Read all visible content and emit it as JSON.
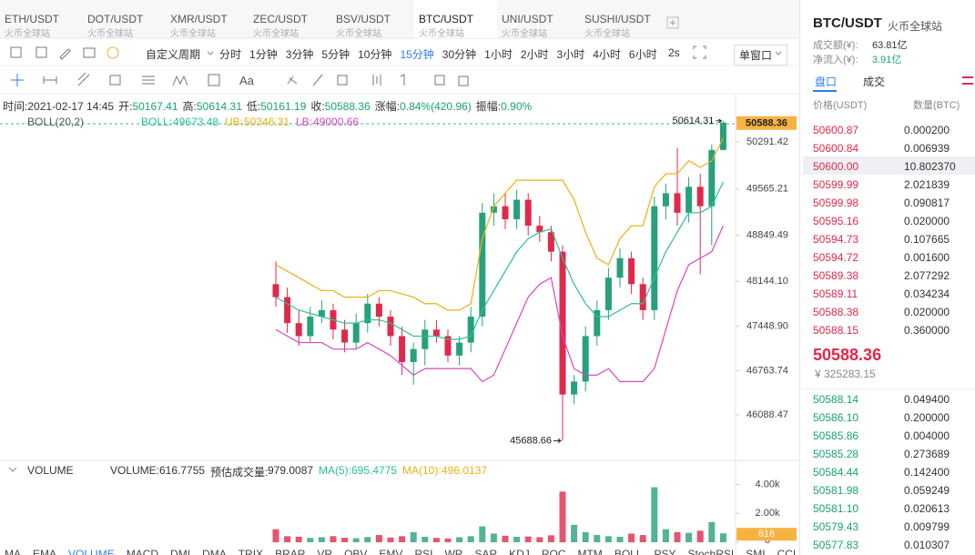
{
  "tabs": [
    {
      "pair": "ETH/USDT",
      "exchange": "火币全球站"
    },
    {
      "pair": "DOT/USDT",
      "exchange": "火币全球站"
    },
    {
      "pair": "XMR/USDT",
      "exchange": "火币全球站"
    },
    {
      "pair": "ZEC/USDT",
      "exchange": "火币全球站"
    },
    {
      "pair": "BSV/USDT",
      "exchange": "火币全球站"
    },
    {
      "pair": "BTC/USDT",
      "exchange": "火币全球站"
    },
    {
      "pair": "UNI/USDT",
      "exchange": "火币全球站"
    },
    {
      "pair": "SUSHI/USDT",
      "exchange": "火币全球站"
    }
  ],
  "active_tab": 5,
  "periods": {
    "custom": "自定义周期",
    "items": [
      "分时",
      "1分钟",
      "3分钟",
      "5分钟",
      "10分钟",
      "15分钟",
      "30分钟",
      "1小时",
      "2小时",
      "3小时",
      "4小时",
      "6小时"
    ],
    "active": 5,
    "refresh": "2s",
    "window": "单窗口"
  },
  "font_tool": "Aa",
  "info": [
    [
      "时间:",
      "2021-02-17 14:45"
    ],
    [
      "开:",
      "50167.41"
    ],
    [
      "高:",
      "50614.31"
    ],
    [
      "低:",
      "50161.19"
    ],
    [
      "收:",
      "50588.36"
    ],
    [
      "涨幅:",
      "0.84%(420.96)"
    ],
    [
      "振幅:",
      "0.90%"
    ]
  ],
  "chart_data": [
    {
      "type": "candlestick",
      "indicator": "BOLL(20,2)",
      "up_color": "#26a17b",
      "down_color": "#e0294a",
      "ylim": [
        45400,
        50725
      ],
      "yticks": [
        50291.42,
        49565.21,
        48849.49,
        {
          "value": 48144.1,
          "label": "48144.10"
        },
        {
          "value": 47448.9,
          "label": "47448.90"
        },
        46763.74,
        46088.47
      ],
      "open": [
        48100,
        47900,
        47500,
        47300,
        47600,
        47700,
        47400,
        47200,
        47500,
        47800,
        47600,
        47300,
        46900,
        47100,
        47400,
        47300,
        47000,
        47200,
        47600,
        49200,
        49300,
        49100,
        49400,
        49000,
        48900,
        48600,
        46400,
        46600,
        47300,
        47700,
        48200,
        48500,
        48100,
        47700,
        49300,
        49500,
        49200,
        49600,
        49300,
        50167.41
      ],
      "high": [
        48450,
        48050,
        47700,
        47750,
        47850,
        47800,
        47550,
        47650,
        47950,
        47900,
        47700,
        47450,
        47200,
        47550,
        47550,
        47400,
        47300,
        47750,
        49350,
        49500,
        49500,
        49550,
        49500,
        49150,
        49000,
        48700,
        46700,
        47450,
        47850,
        48350,
        48650,
        48600,
        48200,
        49450,
        49650,
        50200,
        49750,
        49800,
        50250,
        50614.31
      ],
      "low": [
        47750,
        47350,
        47150,
        47200,
        47500,
        47250,
        47050,
        47100,
        47350,
        47450,
        47150,
        46700,
        46550,
        46850,
        47200,
        46900,
        46850,
        47050,
        47450,
        49000,
        48950,
        48950,
        48850,
        48750,
        48450,
        45688.66,
        46250,
        46450,
        47150,
        47550,
        48050,
        47950,
        47550,
        47550,
        49100,
        49000,
        49050,
        48250,
        48700,
        50161.19
      ],
      "close": [
        47900,
        47500,
        47300,
        47600,
        47700,
        47400,
        47200,
        47500,
        47800,
        47600,
        47300,
        46900,
        47100,
        47400,
        47300,
        47000,
        47200,
        47600,
        49200,
        49300,
        49100,
        49400,
        49000,
        48900,
        48600,
        46400,
        46600,
        47300,
        47700,
        48200,
        48500,
        48100,
        47700,
        49300,
        49500,
        49200,
        49600,
        49300,
        50167.41,
        50588.36
      ],
      "series": [
        {
          "label": "BOLL:",
          "color": "#2bbf9b",
          "values": [
            47900,
            47800,
            47700,
            47650,
            47600,
            47550,
            47500,
            47500,
            47550,
            47550,
            47500,
            47400,
            47300,
            47300,
            47300,
            47250,
            47250,
            47300,
            47700,
            48000,
            48300,
            48600,
            48800,
            48900,
            48950,
            48500,
            48100,
            47800,
            47600,
            47600,
            47700,
            47800,
            47800,
            48200,
            48600,
            48900,
            49200,
            49200,
            49300,
            49673.48
          ]
        },
        {
          "label": "UB:",
          "color": "#eeb012",
          "values": [
            48400,
            48300,
            48200,
            48100,
            48000,
            48000,
            47900,
            47900,
            47900,
            48000,
            48000,
            47950,
            47900,
            47800,
            47800,
            47700,
            47700,
            47800,
            48800,
            49300,
            49500,
            49700,
            49700,
            49700,
            49700,
            49700,
            49400,
            48900,
            48500,
            48400,
            48800,
            49000,
            49000,
            49600,
            49800,
            49800,
            50000,
            49900,
            50000,
            50346.31
          ]
        },
        {
          "label": "LB:",
          "color": "#d946c0",
          "values": [
            47400,
            47300,
            47200,
            47200,
            47200,
            47100,
            47100,
            47100,
            47200,
            47100,
            47000,
            46850,
            46700,
            46800,
            46800,
            46800,
            46800,
            46800,
            46600,
            46700,
            47100,
            47500,
            47900,
            48100,
            48200,
            47300,
            46800,
            46700,
            46700,
            46800,
            46600,
            46600,
            46600,
            46800,
            47400,
            48000,
            48400,
            48500,
            48600,
            49000.66
          ]
        }
      ]
    },
    {
      "type": "bar",
      "title": "VOLUME",
      "ylim": [
        0,
        4400
      ],
      "yticks": [
        {
          "value": 4000,
          "label": "4.00k"
        },
        {
          "value": 2000,
          "label": "2.00k"
        },
        0
      ],
      "legend": [
        [
          "VOLUME:",
          "616.7755"
        ],
        [
          "预估成交量:",
          "979.0087"
        ],
        [
          "MA(5):",
          "695.4775"
        ],
        [
          "MA(10):",
          "496.0137"
        ]
      ],
      "current_label": "616",
      "values": [
        900,
        420,
        380,
        300,
        350,
        420,
        310,
        280,
        360,
        500,
        330,
        420,
        700,
        380,
        300,
        260,
        350,
        420,
        1100,
        600,
        450,
        380,
        400,
        350,
        480,
        3500,
        1200,
        700,
        500,
        420,
        380,
        600,
        500,
        3800,
        900,
        700,
        650,
        800,
        1400,
        616.7755
      ]
    }
  ],
  "indicators": [
    "MA",
    "EMA",
    "VOLUME",
    "MACD",
    "DMI",
    "DMA",
    "TRIX",
    "BRAR",
    "VR",
    "OBV",
    "EMV",
    "RSI",
    "WR",
    "SAR",
    "KDJ",
    "ROC",
    "MTM",
    "BOLL",
    "PSY",
    "StochRSI",
    "SMI",
    "CCI"
  ],
  "active_indicator": 2,
  "market": {
    "pair": "BTC/USDT",
    "exchange": "火币全球站",
    "turnover": [
      "成交额(¥):",
      "63.81亿"
    ],
    "inflow": [
      "净流入(¥):",
      "3.91亿"
    ],
    "tabs": [
      "盘口",
      "成交"
    ],
    "columns": [
      "价格(USDT)",
      "数量(BTC)"
    ],
    "asks": [
      [
        "50600.87",
        "0.000200"
      ],
      [
        "50600.84",
        "0.006939"
      ],
      [
        "50600.00",
        "10.802370"
      ],
      [
        "50599.99",
        "2.021839"
      ],
      [
        "50599.98",
        "0.090817"
      ],
      [
        "50595.16",
        "0.020000"
      ],
      [
        "50594.73",
        "0.107665"
      ],
      [
        "50594.72",
        "0.001600"
      ],
      [
        "50589.38",
        "2.077292"
      ],
      [
        "50589.11",
        "0.034234"
      ],
      [
        "50588.38",
        "0.020000"
      ],
      [
        "50588.15",
        "0.360000"
      ]
    ],
    "last": "50588.36",
    "last_cny": "¥ 325283.15",
    "bids": [
      [
        "50588.14",
        "0.049400"
      ],
      [
        "50586.10",
        "0.200000"
      ],
      [
        "50585.86",
        "0.004000"
      ],
      [
        "50585.28",
        "0.273689"
      ],
      [
        "50584.44",
        "0.142400"
      ],
      [
        "50581.98",
        "0.059249"
      ],
      [
        "50581.10",
        "0.020613"
      ],
      [
        "50579.43",
        "0.009799"
      ],
      [
        "50577.83",
        "0.010307"
      ]
    ]
  }
}
